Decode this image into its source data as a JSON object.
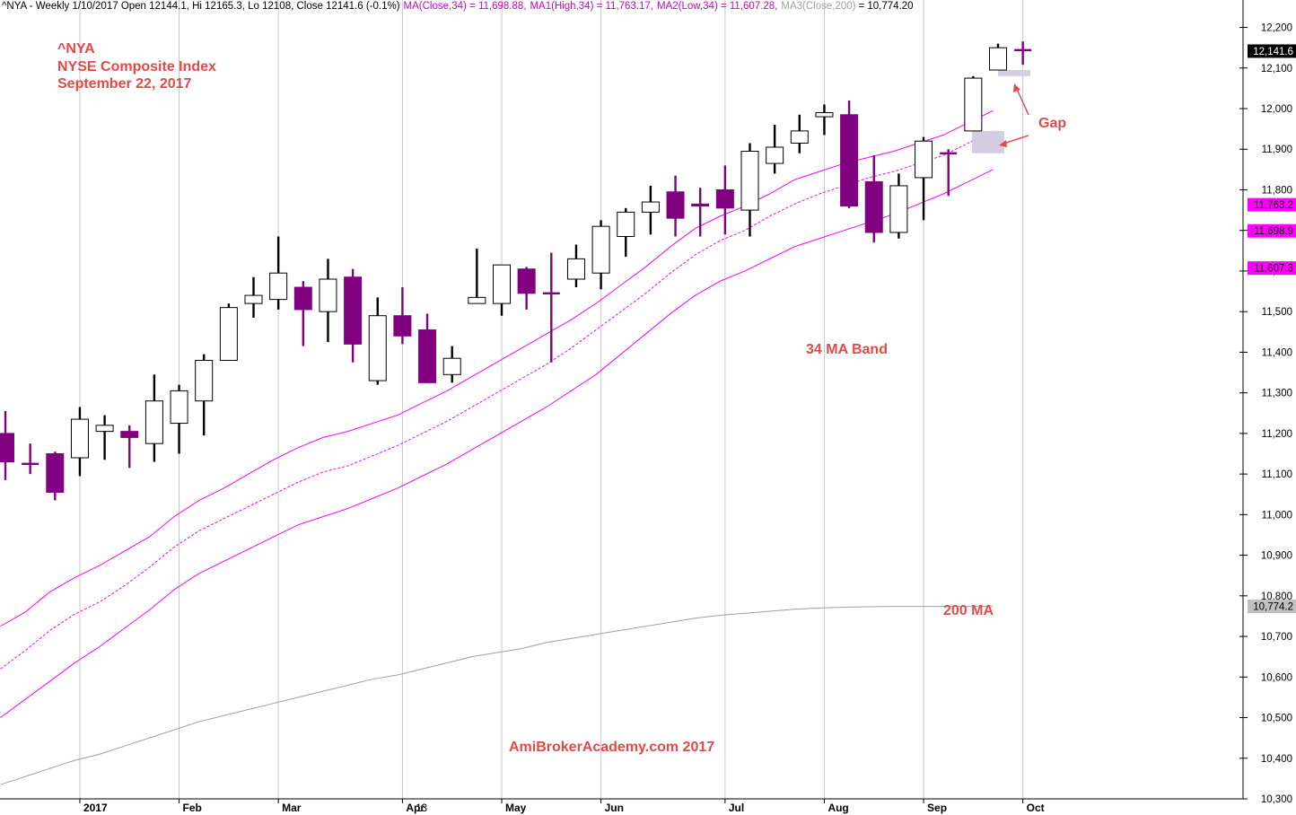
{
  "header": {
    "symbol_info": "^NYA - Weekly 1/10/2017 Open 12144.1, Hi 12165.3, Lo 12108, Close 12141.6 (-0.1%)",
    "ma": "MA(Close,34) = 11,698.88,",
    "ma1": "MA1(High,34) = 11,763.17,",
    "ma2": "MA2(Low,34) = 11,607.28,",
    "ma3_label": "MA3(Close,200)",
    "ma3_value": "= 10,774.20"
  },
  "annotations": {
    "ticker": "^NYA",
    "index_name": "NYSE Composite Index",
    "date": "September 22, 2017",
    "gap": "Gap",
    "ma_band": "34 MA Band",
    "ma200": "200 MA",
    "watermark": "AmiBrokerAcademy.com  2017"
  },
  "colors": {
    "bear": "#800080",
    "bull_fill": "#ffffff",
    "bull_edge": "#000000",
    "ma_band": "#ff00ff",
    "ma200": "#a0a0a0",
    "gap_box": "#d5cde2",
    "annotation": "#e04a48",
    "grid": "#c8c8c8"
  },
  "chart_data": {
    "type": "candlestick",
    "ylim": [
      10300,
      12250
    ],
    "y_ticks": [
      10300,
      10400,
      10500,
      10600,
      10700,
      10800,
      10900,
      11000,
      11100,
      11200,
      11300,
      11400,
      11500,
      11600,
      11700,
      11800,
      11900,
      12000,
      12100,
      12200
    ],
    "y_tick_labels": [
      "10,300",
      "10,400",
      "10,500",
      "10,600",
      "10,700",
      "10,800",
      "10,900",
      "11,000",
      "11,100",
      "11,200",
      "11,300",
      "11,400",
      "11,500",
      "11,600",
      "11,700",
      "11,800",
      "11,900",
      "12,000",
      "12,100",
      "12,200"
    ],
    "x_month_labels": [
      {
        "label": "2017",
        "week": 3
      },
      {
        "label": "Feb",
        "week": 7
      },
      {
        "label": "Mar",
        "week": 11
      },
      {
        "label": "Apr",
        "week": 16
      },
      {
        "label": "13",
        "week": 16.5
      },
      {
        "label": "May",
        "week": 20
      },
      {
        "label": "Jun",
        "week": 24
      },
      {
        "label": "Jul",
        "week": 29
      },
      {
        "label": "Aug",
        "week": 33
      },
      {
        "label": "Sep",
        "week": 37
      },
      {
        "label": "Oct",
        "week": 41
      }
    ],
    "candles": [
      {
        "o": 11200,
        "h": 11255,
        "l": 11085,
        "c": 11130
      },
      {
        "o": 11125,
        "h": 11175,
        "l": 11100,
        "c": 11125
      },
      {
        "o": 11150,
        "h": 11155,
        "l": 11035,
        "c": 11055
      },
      {
        "o": 11140,
        "h": 11265,
        "l": 11095,
        "c": 11235
      },
      {
        "o": 11205,
        "h": 11245,
        "l": 11135,
        "c": 11220
      },
      {
        "o": 11205,
        "h": 11220,
        "l": 11115,
        "c": 11190
      },
      {
        "o": 11175,
        "h": 11345,
        "l": 11130,
        "c": 11280
      },
      {
        "o": 11225,
        "h": 11320,
        "l": 11150,
        "c": 11305
      },
      {
        "o": 11280,
        "h": 11395,
        "l": 11195,
        "c": 11380
      },
      {
        "o": 11380,
        "h": 11520,
        "l": 11380,
        "c": 11510
      },
      {
        "o": 11520,
        "h": 11585,
        "l": 11485,
        "c": 11540
      },
      {
        "o": 11530,
        "h": 11685,
        "l": 11505,
        "c": 11595
      },
      {
        "o": 11560,
        "h": 11575,
        "l": 11415,
        "c": 11505
      },
      {
        "o": 11500,
        "h": 11630,
        "l": 11425,
        "c": 11580
      },
      {
        "o": 11585,
        "h": 11605,
        "l": 11375,
        "c": 11420
      },
      {
        "o": 11330,
        "h": 11535,
        "l": 11320,
        "c": 11490
      },
      {
        "o": 11490,
        "h": 11560,
        "l": 11420,
        "c": 11440
      },
      {
        "o": 11455,
        "h": 11495,
        "l": 11325,
        "c": 11325
      },
      {
        "o": 11345,
        "h": 11415,
        "l": 11325,
        "c": 11385
      },
      {
        "o": 11520,
        "h": 11655,
        "l": 11520,
        "c": 11535
      },
      {
        "o": 11520,
        "h": 11615,
        "l": 11490,
        "c": 11615
      },
      {
        "o": 11605,
        "h": 11610,
        "l": 11505,
        "c": 11545
      },
      {
        "o": 11545,
        "h": 11645,
        "l": 11375,
        "c": 11545
      },
      {
        "o": 11580,
        "h": 11665,
        "l": 11560,
        "c": 11630
      },
      {
        "o": 11595,
        "h": 11725,
        "l": 11555,
        "c": 11710
      },
      {
        "o": 11685,
        "h": 11755,
        "l": 11635,
        "c": 11745
      },
      {
        "o": 11745,
        "h": 11810,
        "l": 11690,
        "c": 11770
      },
      {
        "o": 11795,
        "h": 11835,
        "l": 11685,
        "c": 11730
      },
      {
        "o": 11765,
        "h": 11805,
        "l": 11685,
        "c": 11760
      },
      {
        "o": 11800,
        "h": 11860,
        "l": 11690,
        "c": 11755
      },
      {
        "o": 11750,
        "h": 11915,
        "l": 11685,
        "c": 11895
      },
      {
        "o": 11865,
        "h": 11960,
        "l": 11840,
        "c": 11905
      },
      {
        "o": 11915,
        "h": 11985,
        "l": 11890,
        "c": 11945
      },
      {
        "o": 11980,
        "h": 12010,
        "l": 11935,
        "c": 11990
      },
      {
        "o": 11985,
        "h": 12020,
        "l": 11755,
        "c": 11760
      },
      {
        "o": 11820,
        "h": 11885,
        "l": 11670,
        "c": 11695
      },
      {
        "o": 11695,
        "h": 11840,
        "l": 11680,
        "c": 11810
      },
      {
        "o": 11830,
        "h": 11930,
        "l": 11725,
        "c": 11920
      },
      {
        "o": 11890,
        "h": 11900,
        "l": 11785,
        "c": 11890
      },
      {
        "o": 11945,
        "h": 12080,
        "l": 11945,
        "c": 12075
      },
      {
        "o": 12095,
        "h": 12160,
        "l": 12095,
        "c": 12150
      },
      {
        "o": 12144.1,
        "h": 12165.3,
        "l": 12108,
        "c": 12141.6
      }
    ],
    "series": [
      {
        "name": "MA1(High,34)",
        "style": "solid",
        "color": "#ff00ff",
        "values": [
          10725,
          10760,
          10810,
          10845,
          10875,
          10910,
          10945,
          10995,
          11035,
          11065,
          11100,
          11135,
          11165,
          11190,
          11205,
          11225,
          11245,
          11275,
          11305,
          11340,
          11375,
          11410,
          11445,
          11480,
          11520,
          11565,
          11610,
          11660,
          11705,
          11735,
          11760,
          11790,
          11825,
          11845,
          11865,
          11880,
          11895,
          11915,
          11935,
          11965,
          11995,
          11763
        ]
      },
      {
        "name": "MA(Close,34)",
        "style": "dotted",
        "color": "#ff00ff",
        "values": [
          10620,
          10665,
          10715,
          10755,
          10785,
          10825,
          10870,
          10920,
          10960,
          10990,
          11020,
          11050,
          11080,
          11105,
          11120,
          11145,
          11170,
          11200,
          11230,
          11265,
          11300,
          11335,
          11370,
          11410,
          11455,
          11500,
          11545,
          11595,
          11640,
          11675,
          11700,
          11735,
          11765,
          11790,
          11810,
          11830,
          11845,
          11865,
          11885,
          11915,
          11945,
          11699
        ]
      },
      {
        "name": "MA2(Low,34)",
        "style": "solid",
        "color": "#ff00ff",
        "values": [
          10500,
          10545,
          10590,
          10635,
          10675,
          10720,
          10765,
          10815,
          10855,
          10885,
          10915,
          10945,
          10975,
          10995,
          11015,
          11040,
          11065,
          11095,
          11125,
          11160,
          11195,
          11230,
          11265,
          11305,
          11345,
          11395,
          11445,
          11495,
          11540,
          11575,
          11600,
          11630,
          11660,
          11680,
          11700,
          11720,
          11740,
          11765,
          11790,
          11820,
          11850,
          11607
        ]
      },
      {
        "name": "MA3(Close,200)",
        "style": "solid",
        "color": "#a0a0a0",
        "values": [
          10335,
          10355,
          10375,
          10395,
          10410,
          10430,
          10450,
          10470,
          10490,
          10505,
          10520,
          10535,
          10550,
          10565,
          10580,
          10595,
          10605,
          10620,
          10635,
          10650,
          10660,
          10670,
          10685,
          10695,
          10705,
          10715,
          10725,
          10735,
          10745,
          10752,
          10757,
          10762,
          10767,
          10770,
          10772,
          10773,
          10774,
          10774,
          10774,
          10774,
          10774,
          10774
        ]
      }
    ],
    "last_values": [
      {
        "label": "12,141.6",
        "value": 12141.6,
        "bg": "#000000",
        "fg": "#ffffff"
      },
      {
        "label": "11,763.2",
        "value": 11763.2,
        "bg": "#ff00ff",
        "fg": "#000000"
      },
      {
        "label": "11,698.9",
        "value": 11698.9,
        "bg": "#ff00ff",
        "fg": "#000000"
      },
      {
        "label": "11,607.3",
        "value": 11607.3,
        "bg": "#ff00ff",
        "fg": "#000000"
      },
      {
        "label": "10,774.2",
        "value": 10774.2,
        "bg": "#c0c0c0",
        "fg": "#000000"
      }
    ],
    "gap_zones": [
      {
        "from_week": 38.95,
        "to_week": 40.25,
        "y0": 11890,
        "y1": 11945
      },
      {
        "from_week": 40.0,
        "to_week": 41.3,
        "y0": 12080,
        "y1": 12095
      }
    ]
  }
}
